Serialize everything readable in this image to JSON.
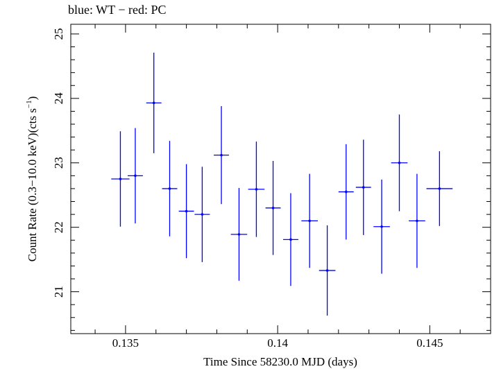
{
  "chart_data": {
    "type": "scatter",
    "title": "blue: WT − red: PC",
    "xlabel": "Time Since 58230.0 MJD (days)",
    "ylabel_main": "Count Rate (0.3−10.0 keV)(cts s",
    "ylabel_sup": "−1",
    "ylabel_end": ")",
    "xlim": [
      0.1332,
      0.147
    ],
    "ylim": [
      20.35,
      25.15
    ],
    "x_major_ticks": [
      0.135,
      0.14,
      0.145
    ],
    "x_tick_labels": [
      "0.135",
      "0.14",
      "0.145"
    ],
    "x_minor_step": 0.001,
    "y_major_ticks": [
      21,
      22,
      23,
      24,
      25
    ],
    "y_tick_labels": [
      "21",
      "22",
      "23",
      "24",
      "25"
    ],
    "y_minor_step": 0.2,
    "grid": false,
    "series": [
      {
        "color": "#0000ff",
        "points": [
          {
            "x": 0.13483,
            "xerr": 0.0003,
            "y": 22.75,
            "yerr": 0.74
          },
          {
            "x": 0.13532,
            "xerr": 0.00025,
            "y": 22.8,
            "yerr": 0.74
          },
          {
            "x": 0.13593,
            "xerr": 0.00025,
            "y": 23.93,
            "yerr": 0.78
          },
          {
            "x": 0.13645,
            "xerr": 0.00025,
            "y": 22.6,
            "yerr": 0.74
          },
          {
            "x": 0.137,
            "xerr": 0.00025,
            "y": 22.25,
            "yerr": 0.73
          },
          {
            "x": 0.13752,
            "xerr": 0.00025,
            "y": 22.2,
            "yerr": 0.74
          },
          {
            "x": 0.13815,
            "xerr": 0.00025,
            "y": 23.12,
            "yerr": 0.76
          },
          {
            "x": 0.13873,
            "xerr": 0.00027,
            "y": 21.89,
            "yerr": 0.72
          },
          {
            "x": 0.1393,
            "xerr": 0.00027,
            "y": 22.59,
            "yerr": 0.74
          },
          {
            "x": 0.13985,
            "xerr": 0.00025,
            "y": 22.3,
            "yerr": 0.73
          },
          {
            "x": 0.14043,
            "xerr": 0.00025,
            "y": 21.81,
            "yerr": 0.72
          },
          {
            "x": 0.14105,
            "xerr": 0.00027,
            "y": 22.1,
            "yerr": 0.73
          },
          {
            "x": 0.14163,
            "xerr": 0.00027,
            "y": 21.33,
            "yerr": 0.7
          },
          {
            "x": 0.14225,
            "xerr": 0.00025,
            "y": 22.55,
            "yerr": 0.74
          },
          {
            "x": 0.14282,
            "xerr": 0.00025,
            "y": 22.62,
            "yerr": 0.74
          },
          {
            "x": 0.14342,
            "xerr": 0.00027,
            "y": 22.01,
            "yerr": 0.73
          },
          {
            "x": 0.144,
            "xerr": 0.00027,
            "y": 23.0,
            "yerr": 0.75
          },
          {
            "x": 0.14458,
            "xerr": 0.00027,
            "y": 22.1,
            "yerr": 0.73
          },
          {
            "x": 0.14532,
            "xerr": 0.00043,
            "y": 22.6,
            "yerr": 0.58
          }
        ]
      }
    ]
  }
}
